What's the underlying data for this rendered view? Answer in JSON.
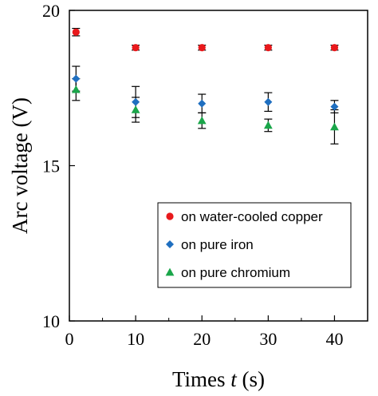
{
  "chart_data": {
    "type": "scatter",
    "xlabel_prefix": "Times ",
    "xlabel_var": "t",
    "xlabel_suffix": " (s)",
    "ylabel": "Arc voltage (V)",
    "xlim": [
      0,
      45
    ],
    "ylim": [
      10,
      20
    ],
    "xticks": [
      0,
      10,
      20,
      30,
      40
    ],
    "yticks": [
      10,
      15,
      20
    ],
    "grid": false,
    "legend_position": "bottom-right",
    "series": [
      {
        "name": "on water-cooled copper",
        "marker": "circle",
        "color": "#e8191c",
        "x": [
          1,
          10,
          20,
          30,
          40
        ],
        "y": [
          19.3,
          18.8,
          18.8,
          18.8,
          18.8
        ],
        "err": [
          0.12,
          0.08,
          0.08,
          0.08,
          0.08
        ]
      },
      {
        "name": "on pure iron",
        "marker": "diamond",
        "color": "#1f6fc0",
        "x": [
          1,
          10,
          20,
          30,
          40
        ],
        "y": [
          17.8,
          17.05,
          17.0,
          17.05,
          16.9
        ],
        "err": [
          0.4,
          0.5,
          0.3,
          0.3,
          0.2
        ]
      },
      {
        "name": "on pure chromium",
        "marker": "triangle",
        "color": "#1aa64a",
        "x": [
          1,
          10,
          20,
          30,
          40
        ],
        "y": [
          17.45,
          16.8,
          16.45,
          16.3,
          16.25
        ],
        "err": [
          0.35,
          0.4,
          0.25,
          0.2,
          0.55
        ]
      }
    ]
  }
}
